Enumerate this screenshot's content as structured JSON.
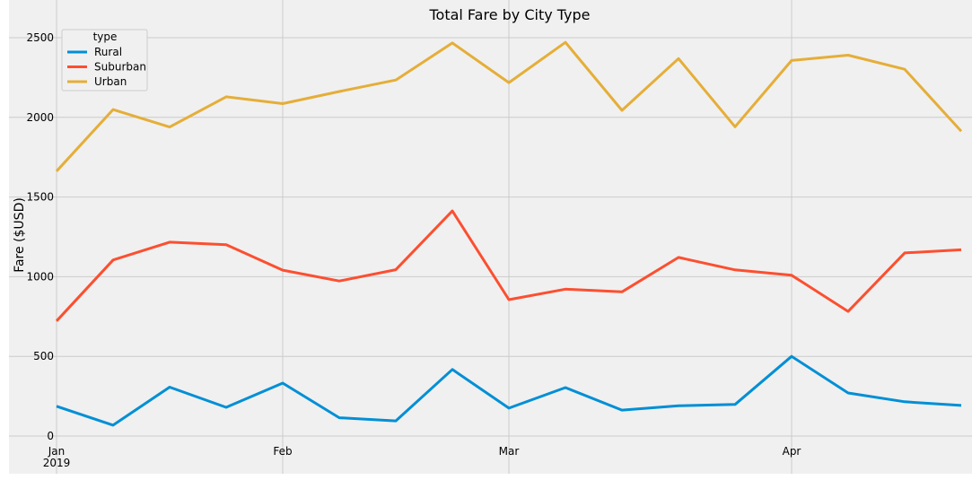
{
  "chart_data": {
    "type": "line",
    "title": "Total Fare by City Type",
    "xlabel": "",
    "ylabel": "Fare ($USD)",
    "ylim": [
      0,
      2600
    ],
    "yticks": [
      0,
      500,
      1000,
      1500,
      2000,
      2500
    ],
    "grid": true,
    "legend": {
      "title": "type",
      "placement": "top-left"
    },
    "x_week_index": [
      0,
      1,
      2,
      3,
      4,
      5,
      6,
      7,
      8,
      9,
      10,
      11,
      12,
      13,
      14,
      15,
      16
    ],
    "x_tick_labels": [
      {
        "label": "Jan",
        "sublabel": "2019",
        "week_index": 0
      },
      {
        "label": "Feb",
        "sublabel": "",
        "week_index": 4
      },
      {
        "label": "Mar",
        "sublabel": "",
        "week_index": 8
      },
      {
        "label": "Apr",
        "sublabel": "",
        "week_index": 13
      }
    ],
    "series": [
      {
        "name": "Rural",
        "color": "#008fd5",
        "values": [
          187,
          68,
          307,
          180,
          332,
          115,
          95,
          418,
          175,
          304,
          163,
          190,
          198,
          500,
          270,
          215,
          192
        ]
      },
      {
        "name": "Suburban",
        "color": "#fc4f30",
        "values": [
          722,
          1105,
          1217,
          1201,
          1041,
          973,
          1044,
          1413,
          856,
          922,
          905,
          1121,
          1043,
          1009,
          782,
          1149,
          1169
        ]
      },
      {
        "name": "Urban",
        "color": "#e5ae38",
        "values": [
          1662,
          2049,
          1939,
          2129,
          2086,
          2162,
          2234,
          2467,
          2218,
          2471,
          2044,
          2369,
          1941,
          2357,
          2390,
          2302,
          1913
        ]
      }
    ]
  }
}
